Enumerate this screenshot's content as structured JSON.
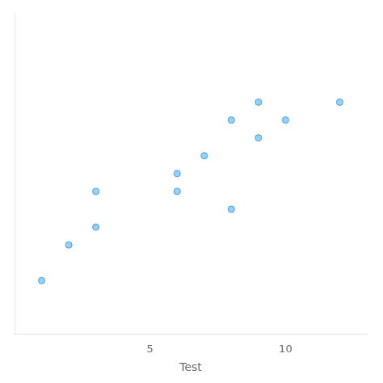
{
  "chart_data": {
    "type": "scatter",
    "x": [
      1,
      2,
      3,
      3,
      6,
      6,
      7,
      8,
      8,
      9,
      9,
      10,
      12
    ],
    "y": [
      1,
      3,
      4,
      6,
      6,
      7,
      8,
      5,
      10,
      9,
      11,
      10,
      11
    ],
    "xlabel": "Test",
    "xlim": [
      0,
      13
    ],
    "xticks": [
      5,
      10
    ],
    "ylim": [
      -2,
      16
    ],
    "yticks": [],
    "grid": false,
    "tick_labels": "x"
  }
}
